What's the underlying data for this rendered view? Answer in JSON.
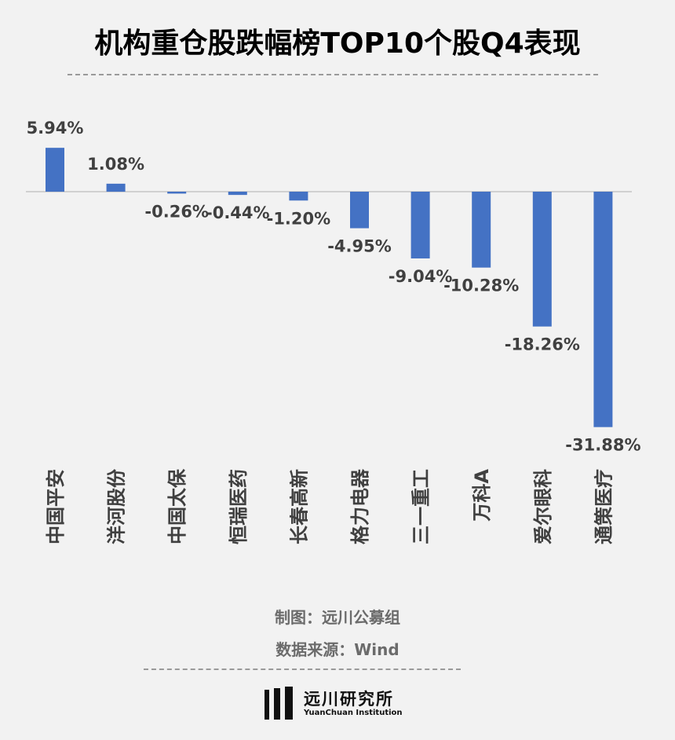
{
  "title": "机构重仓股跌幅榜TOP10个股Q4表现",
  "chart_data": {
    "type": "bar",
    "title": "机构重仓股跌幅榜TOP10个股Q4表现",
    "categories": [
      "中国平安",
      "洋河股份",
      "中国太保",
      "恒瑞医药",
      "长春高新",
      "格力电器",
      "三一重工",
      "万科A",
      "爱尔眼科",
      "通策医疗"
    ],
    "values": [
      5.94,
      1.08,
      -0.26,
      -0.44,
      -1.2,
      -4.95,
      -9.04,
      -10.28,
      -18.26,
      -31.88
    ],
    "value_labels": [
      "5.94%",
      "1.08%",
      "-0.26%",
      "-0.44%",
      "-1.20%",
      "-4.95%",
      "-9.04%",
      "-10.28%",
      "-18.26%",
      "-31.88%"
    ],
    "bar_color": "#4472c4",
    "xlabel": "",
    "ylabel": "",
    "grid": false,
    "legend": "none"
  },
  "footer": {
    "maker": "制图：远川公募组",
    "source": "数据来源：Wind"
  },
  "logo": {
    "name_cn": "远川研究所",
    "name_en": "YuanChuan Institution"
  }
}
